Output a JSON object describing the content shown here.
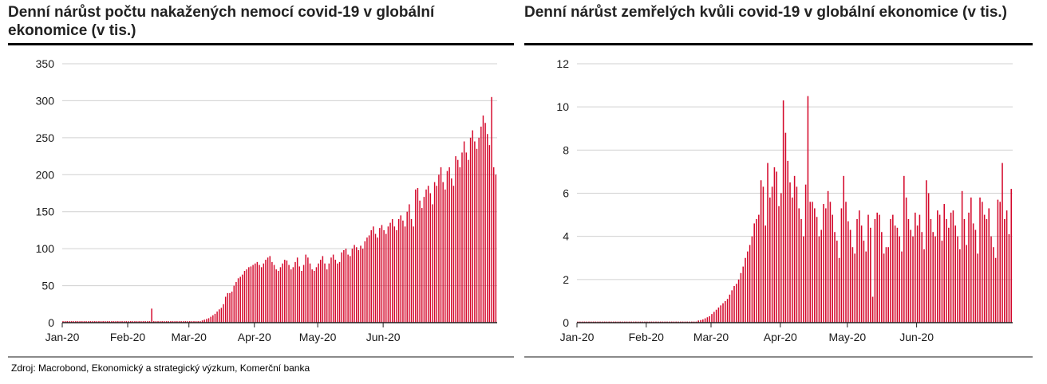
{
  "source": "Zdroj: Macrobond, Ekonomický a strategický výzkum, Komerční banka",
  "colors": {
    "bar": "#d4072a",
    "grid": "#d0d0d0",
    "axis": "#222222"
  },
  "chart_data": [
    {
      "type": "bar",
      "title": "Denní nárůst počtu nakažených nemocí covid-19 v globální ekonomice (v tis.)",
      "x_tick_labels": [
        "Jan-20",
        "Feb-20",
        "Mar-20",
        "Apr-20",
        "May-20",
        "Jun-20"
      ],
      "y_ticks": [
        0,
        50,
        100,
        150,
        200,
        250,
        300,
        350
      ],
      "ylim": [
        0,
        350
      ],
      "grid": true,
      "x_start": "2020-01-01",
      "values": [
        2,
        2,
        2,
        2,
        2,
        2,
        2,
        2,
        2,
        2,
        2,
        2,
        2,
        2,
        2,
        2,
        2,
        2,
        2,
        2,
        2,
        2,
        2,
        2,
        2,
        2,
        2,
        2,
        2,
        2,
        2,
        2,
        2,
        2,
        2,
        2,
        2,
        2,
        2,
        2,
        2,
        2,
        19,
        2,
        2,
        2,
        2,
        2,
        2,
        2,
        2,
        2,
        2,
        2,
        2,
        2,
        2,
        2,
        2,
        2,
        2,
        2,
        2,
        2,
        2,
        2,
        3,
        4,
        5,
        6,
        8,
        10,
        12,
        15,
        18,
        20,
        25,
        35,
        40,
        40,
        42,
        50,
        55,
        60,
        62,
        65,
        70,
        72,
        75,
        76,
        78,
        80,
        82,
        78,
        75,
        80,
        85,
        88,
        90,
        82,
        78,
        72,
        70,
        75,
        80,
        85,
        84,
        78,
        72,
        75,
        82,
        88,
        76,
        70,
        78,
        92,
        88,
        80,
        72,
        70,
        75,
        80,
        85,
        90,
        80,
        72,
        80,
        88,
        92,
        85,
        80,
        82,
        95,
        98,
        100,
        92,
        90,
        100,
        105,
        102,
        98,
        104,
        100,
        110,
        115,
        118,
        125,
        130,
        120,
        115,
        128,
        132,
        125,
        120,
        130,
        135,
        140,
        130,
        125,
        140,
        145,
        138,
        130,
        150,
        160,
        140,
        130,
        180,
        182,
        165,
        155,
        170,
        180,
        185,
        175,
        160,
        190,
        185,
        200,
        210,
        190,
        180,
        205,
        210,
        195,
        185,
        225,
        220,
        210,
        230,
        245,
        230,
        220,
        250,
        260,
        245,
        235,
        250,
        265,
        280,
        270,
        255,
        240,
        305,
        210,
        200
      ]
    },
    {
      "type": "bar",
      "title": "Denní nárůst zemřelých kvůli covid-19 v globální ekonomice (v tis.)",
      "x_tick_labels": [
        "Jan-20",
        "Feb-20",
        "Mar-20",
        "Apr-20",
        "May-20",
        "Jun-20"
      ],
      "y_ticks": [
        0,
        2,
        4,
        6,
        8,
        10,
        12
      ],
      "ylim": [
        0,
        12
      ],
      "grid": true,
      "x_start": "2020-01-01",
      "values": [
        0.05,
        0.05,
        0.05,
        0.05,
        0.05,
        0.05,
        0.05,
        0.05,
        0.05,
        0.05,
        0.05,
        0.05,
        0.05,
        0.05,
        0.05,
        0.05,
        0.05,
        0.05,
        0.05,
        0.05,
        0.05,
        0.05,
        0.05,
        0.05,
        0.05,
        0.05,
        0.05,
        0.05,
        0.05,
        0.05,
        0.05,
        0.05,
        0.05,
        0.05,
        0.05,
        0.05,
        0.05,
        0.05,
        0.05,
        0.05,
        0.05,
        0.05,
        0.05,
        0.05,
        0.05,
        0.05,
        0.05,
        0.05,
        0.05,
        0.05,
        0.05,
        0.05,
        0.05,
        0.05,
        0.1,
        0.12,
        0.15,
        0.2,
        0.25,
        0.3,
        0.4,
        0.5,
        0.6,
        0.7,
        0.8,
        0.9,
        1.0,
        1.1,
        1.3,
        1.5,
        1.7,
        1.8,
        2.0,
        2.3,
        2.6,
        3.0,
        3.3,
        3.6,
        4.0,
        4.6,
        4.8,
        5.0,
        6.6,
        6.3,
        4.5,
        7.4,
        5.8,
        6.3,
        7.2,
        7.0,
        5.4,
        6.0,
        10.3,
        8.8,
        7.5,
        6.5,
        5.8,
        6.8,
        6.3,
        5.3,
        4.8,
        4.0,
        6.4,
        10.5,
        5.6,
        5.6,
        5.3,
        4.9,
        4.0,
        4.3,
        5.5,
        5.3,
        6.1,
        5.6,
        5.0,
        4.2,
        3.8,
        3.0,
        5.3,
        6.8,
        5.6,
        4.7,
        4.3,
        3.5,
        3.2,
        4.8,
        5.2,
        4.5,
        3.8,
        3.3,
        5.0,
        4.4,
        1.2,
        4.8,
        5.1,
        5.0,
        4.2,
        3.2,
        3.5,
        3.5,
        4.8,
        5.0,
        4.5,
        4.4,
        4.0,
        3.3,
        6.8,
        5.8,
        4.8,
        4.3,
        4.0,
        5.1,
        4.5,
        5.0,
        4.2,
        3.4,
        6.6,
        6.0,
        4.8,
        4.2,
        4.0,
        5.2,
        5.0,
        3.8,
        5.5,
        4.8,
        4.4,
        5.1,
        5.2,
        4.5,
        4.0,
        3.4,
        6.1,
        4.8,
        3.6,
        5.1,
        5.8,
        4.6,
        4.3,
        3.2,
        5.8,
        5.6,
        5.0,
        4.8,
        5.3,
        4.0,
        3.5,
        3.0,
        5.7,
        5.6,
        7.4,
        4.8,
        5.2,
        4.1,
        6.2
      ]
    }
  ]
}
